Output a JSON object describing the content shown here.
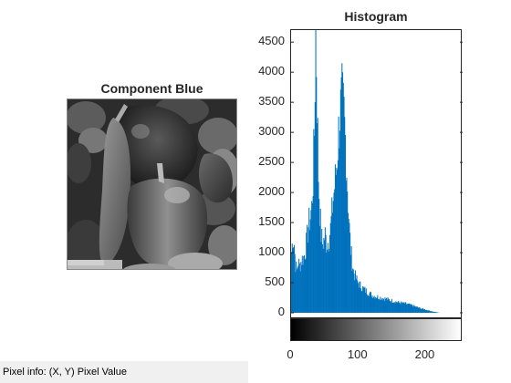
{
  "image_panel": {
    "title": "Component Blue"
  },
  "histogram": {
    "title": "Histogram"
  },
  "status_bar": {
    "text": "Pixel info: (X, Y)  Pixel Value"
  },
  "colors": {
    "bar_fill": "#0072bd",
    "axis": "#262626"
  },
  "chart_data": {
    "type": "bar",
    "title": "Histogram",
    "xlabel": "",
    "ylabel": "",
    "xlim": [
      0,
      255
    ],
    "ylim": [
      0,
      4700
    ],
    "xticks": [
      0,
      100,
      200
    ],
    "yticks": [
      0,
      500,
      1000,
      1500,
      2000,
      2500,
      3000,
      3500,
      4000,
      4500
    ],
    "grid": false,
    "colorbar": "grayscale 0-255 below x-axis",
    "profile": {
      "x": [
        0,
        2,
        4,
        6,
        8,
        10,
        12,
        15,
        18,
        20,
        22,
        25,
        28,
        30,
        32,
        34,
        36,
        38,
        40,
        42,
        44,
        46,
        48,
        50,
        52,
        55,
        58,
        60,
        62,
        65,
        68,
        70,
        72,
        75,
        78,
        80,
        82,
        84,
        86,
        88,
        90,
        92,
        95,
        98,
        100,
        105,
        110,
        115,
        120,
        130,
        140,
        150,
        160,
        170,
        180,
        190,
        200,
        210,
        215,
        218,
        220,
        225,
        255
      ],
      "y": [
        1000,
        1250,
        1150,
        800,
        700,
        850,
        780,
        880,
        920,
        1000,
        1150,
        1450,
        1600,
        1750,
        2200,
        3000,
        4750,
        3600,
        2300,
        1700,
        1300,
        1150,
        1200,
        1300,
        1150,
        1200,
        1400,
        1650,
        1900,
        2200,
        2600,
        3000,
        3300,
        3550,
        3300,
        2900,
        2400,
        1850,
        1400,
        1050,
        850,
        700,
        600,
        520,
        480,
        420,
        370,
        330,
        290,
        260,
        230,
        200,
        170,
        150,
        120,
        80,
        50,
        20,
        10,
        5,
        0,
        0,
        0
      ]
    }
  }
}
